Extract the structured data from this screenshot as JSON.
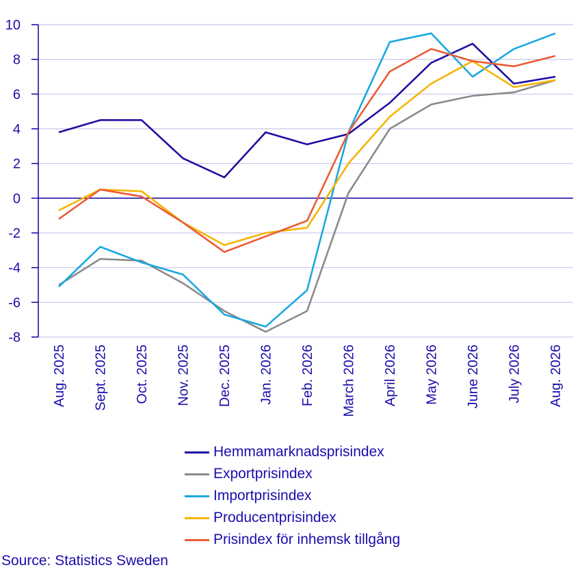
{
  "chart_data": {
    "type": "line",
    "categories": [
      "Aug. 2025",
      "Sept. 2025",
      "Oct. 2025",
      "Nov. 2025",
      "Dec. 2025",
      "Jan. 2026",
      "Feb. 2026",
      "March 2026",
      "April 2026",
      "May 2026",
      "June 2026",
      "July 2026",
      "Aug. 2026"
    ],
    "ylim": [
      -8,
      10
    ],
    "yticks": [
      10,
      8,
      6,
      4,
      2,
      0,
      -2,
      -4,
      -6,
      -8
    ],
    "grid": "horizontal",
    "legend_position": "bottom",
    "series": [
      {
        "name": "Hemmamarknadsprisindex",
        "color": "#1e0fa0",
        "values": [
          3.8,
          4.5,
          4.5,
          2.3,
          1.2,
          3.8,
          3.1,
          3.7,
          5.5,
          7.8,
          8.9,
          6.6,
          7.0
        ]
      },
      {
        "name": "Exportprisindex",
        "color": "#8a8a8a",
        "values": [
          -5.0,
          -3.5,
          -3.6,
          -4.9,
          -6.5,
          -7.7,
          -6.5,
          0.3,
          4.0,
          5.4,
          5.9,
          6.1,
          6.8
        ]
      },
      {
        "name": "Importprisindex",
        "color": "#1aa8e0",
        "values": [
          -5.1,
          -2.8,
          -3.7,
          -4.4,
          -6.7,
          -7.4,
          -5.3,
          3.8,
          9.0,
          9.5,
          7.0,
          8.6,
          9.5
        ]
      },
      {
        "name": "Producentprisindex",
        "color": "#f5b400",
        "values": [
          -0.7,
          0.5,
          0.4,
          -1.4,
          -2.7,
          -2.0,
          -1.7,
          2.0,
          4.7,
          6.6,
          7.9,
          6.4,
          6.8
        ]
      },
      {
        "name": "Prisindex för inhemsk tillgång",
        "color": "#ea5b35",
        "values": [
          -1.2,
          0.5,
          0.1,
          -1.4,
          -3.1,
          -2.2,
          -1.3,
          3.8,
          7.3,
          8.6,
          7.9,
          7.6,
          8.2
        ]
      }
    ]
  },
  "source": "Source: Statistics Sweden"
}
